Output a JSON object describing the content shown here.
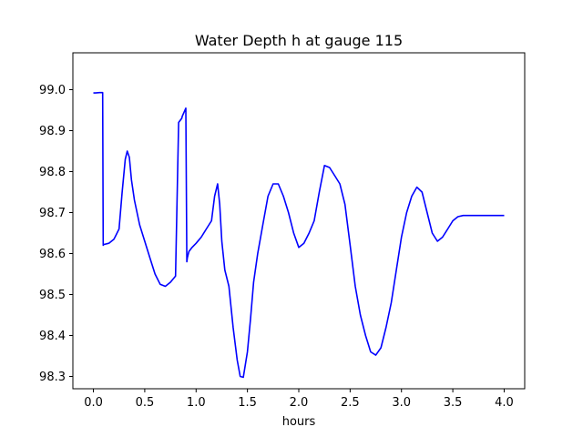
{
  "chart_data": {
    "type": "line",
    "title": "Water Depth h at gauge 115",
    "xlabel": "hours",
    "ylabel": "",
    "xlim": [
      -0.2,
      4.2
    ],
    "ylim": [
      98.27,
      99.09
    ],
    "xticks": [
      0.0,
      0.5,
      1.0,
      1.5,
      2.0,
      2.5,
      3.0,
      3.5,
      4.0
    ],
    "xtick_labels": [
      "0.0",
      "0.5",
      "1.0",
      "1.5",
      "2.0",
      "2.5",
      "3.0",
      "3.5",
      "4.0"
    ],
    "yticks": [
      98.3,
      98.4,
      98.5,
      98.6,
      98.7,
      98.8,
      98.9,
      99.0
    ],
    "ytick_labels": [
      "98.3",
      "98.4",
      "98.5",
      "98.6",
      "98.7",
      "98.8",
      "98.9",
      "99.0"
    ],
    "grid": false,
    "legend": "none",
    "series": [
      {
        "color": "#0000ff",
        "x": [
          0.0,
          0.02,
          0.06,
          0.09,
          0.095,
          0.1,
          0.15,
          0.2,
          0.25,
          0.28,
          0.31,
          0.33,
          0.35,
          0.37,
          0.4,
          0.45,
          0.5,
          0.55,
          0.6,
          0.65,
          0.7,
          0.75,
          0.8,
          0.83,
          0.86,
          0.865,
          0.9,
          0.91,
          0.915,
          0.93,
          0.96,
          1.0,
          1.05,
          1.1,
          1.15,
          1.18,
          1.21,
          1.23,
          1.25,
          1.28,
          1.32,
          1.36,
          1.4,
          1.43,
          1.46,
          1.5,
          1.53,
          1.56,
          1.6,
          1.65,
          1.7,
          1.75,
          1.8,
          1.85,
          1.9,
          1.95,
          2.0,
          2.05,
          2.1,
          2.15,
          2.2,
          2.25,
          2.3,
          2.35,
          2.4,
          2.45,
          2.5,
          2.55,
          2.6,
          2.65,
          2.7,
          2.75,
          2.8,
          2.85,
          2.9,
          2.95,
          3.0,
          3.05,
          3.1,
          3.15,
          3.2,
          3.25,
          3.3,
          3.35,
          3.4,
          3.45,
          3.5,
          3.55,
          3.6,
          3.65,
          3.7,
          3.75,
          3.8,
          3.85,
          3.9,
          3.95,
          4.0
        ],
        "y": [
          98.992,
          98.992,
          98.993,
          98.993,
          98.62,
          98.622,
          98.625,
          98.635,
          98.66,
          98.75,
          98.83,
          98.85,
          98.835,
          98.78,
          98.73,
          98.67,
          98.63,
          98.59,
          98.55,
          98.525,
          98.52,
          98.53,
          98.545,
          98.92,
          98.93,
          98.935,
          98.955,
          98.58,
          98.59,
          98.605,
          98.615,
          98.625,
          98.64,
          98.66,
          98.68,
          98.74,
          98.77,
          98.72,
          98.63,
          98.56,
          98.52,
          98.42,
          98.34,
          98.3,
          98.298,
          98.36,
          98.44,
          98.53,
          98.6,
          98.67,
          98.74,
          98.77,
          98.77,
          98.74,
          98.7,
          98.65,
          98.615,
          98.625,
          98.65,
          98.68,
          98.75,
          98.815,
          98.81,
          98.79,
          98.77,
          98.72,
          98.62,
          98.52,
          98.45,
          98.4,
          98.36,
          98.352,
          98.37,
          98.42,
          98.48,
          98.56,
          98.64,
          98.7,
          98.74,
          98.762,
          98.75,
          98.7,
          98.65,
          98.63,
          98.64,
          98.66,
          98.68,
          98.69,
          98.693,
          98.693,
          98.693,
          98.693,
          98.693,
          98.693,
          98.693,
          98.693,
          98.693
        ]
      }
    ]
  }
}
